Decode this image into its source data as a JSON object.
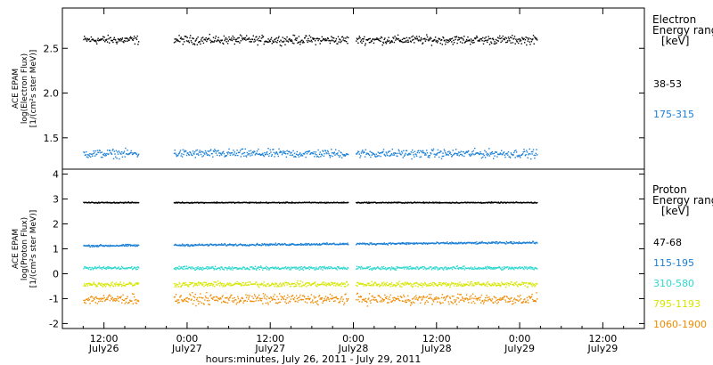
{
  "chart_data": [
    {
      "type": "scatter",
      "panel": "electron",
      "ylabel_lines": [
        "ACE EPAM",
        "log(Electron Flux)",
        "[1/(cm²s ster MeV)]"
      ],
      "ylim": [
        1.15,
        2.95
      ],
      "y_ticks": [
        "1.5",
        "2.0",
        "2.5"
      ],
      "legend_title_lines": [
        "Electron",
        "Energy range",
        "[keV]"
      ],
      "series": [
        {
          "name": "38-53",
          "color": "#000000",
          "level": 2.6,
          "noise": 0.07
        },
        {
          "name": "175-315",
          "color": "#1a7fd6",
          "level": 1.33,
          "noise": 0.07
        }
      ]
    },
    {
      "type": "scatter",
      "panel": "proton",
      "ylabel_lines": [
        "ACE EPAM",
        "log(Proton Flux)",
        "[1/(cm²s ster MeV)]"
      ],
      "ylim": [
        -2.2,
        4.2
      ],
      "y_ticks": [
        "-2",
        "-1",
        "0",
        "1",
        "2",
        "3",
        "4"
      ],
      "legend_title_lines": [
        "Proton",
        "Energy range",
        "[keV]"
      ],
      "series": [
        {
          "name": "47-68",
          "color": "#000000",
          "level": 2.88,
          "noise": 0.03
        },
        {
          "name": "115-195",
          "color": "#1a7fd6",
          "level": 1.15,
          "noise": 0.06
        },
        {
          "name": "310-580",
          "color": "#2ed8cf",
          "level": 0.25,
          "noise": 0.1
        },
        {
          "name": "795-1193",
          "color": "#d6e600",
          "level": -0.4,
          "noise": 0.15
        },
        {
          "name": "1060-1900",
          "color": "#f08a00",
          "level": -1.0,
          "noise": 0.3
        }
      ]
    }
  ],
  "x_axis": {
    "xlim_hours": [
      -6,
      78
    ],
    "data_gaps_hours": [
      [
        5,
        10
      ],
      [
        35.2,
        36.3
      ],
      [
        62.5,
        78
      ]
    ],
    "ticks": [
      {
        "hour": 0,
        "time": "12:00",
        "date": "July26"
      },
      {
        "hour": 12,
        "time": "0:00",
        "date": "July27"
      },
      {
        "hour": 24,
        "time": "12:00",
        "date": "July27"
      },
      {
        "hour": 36,
        "time": "0:00",
        "date": "July28"
      },
      {
        "hour": 48,
        "time": "12:00",
        "date": "July28"
      },
      {
        "hour": 60,
        "time": "0:00",
        "date": "July29"
      },
      {
        "hour": 72,
        "time": "12:00",
        "date": "July29"
      }
    ],
    "xlabel": "hours:minutes, July 26, 2011 - July 29, 2011"
  }
}
